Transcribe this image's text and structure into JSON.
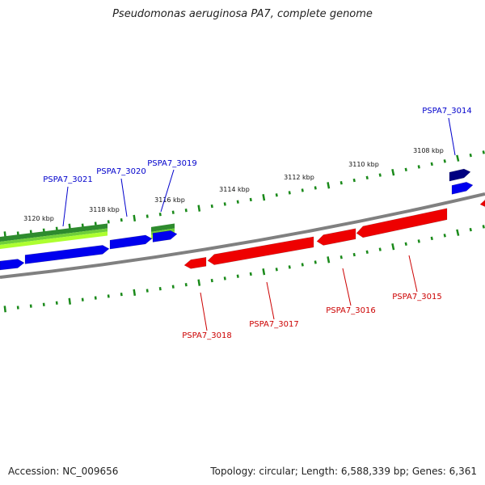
{
  "header": {
    "title": "Pseudomonas aeruginosa PA7, complete genome"
  },
  "footer": {
    "accession": "Accession: NC_009656",
    "summary": "Topology: circular; Length: 6,588,339 bp; Genes: 6,361"
  },
  "colors": {
    "backbone": "#808080",
    "plus_gene": "#0000ee",
    "plus_gene_dark": "#000080",
    "minus_gene": "#ee0000",
    "feature_green": "#2e8b2e",
    "feature_lightgreen": "#adff2f",
    "tick": "#1a8a1a",
    "plus_label": "#0000cc",
    "minus_label": "#cc0000"
  },
  "scale": {
    "ticks": [
      {
        "kbp": 3108,
        "label": "3108 kbp"
      },
      {
        "kbp": 3110,
        "label": "3110 kbp"
      },
      {
        "kbp": 3112,
        "label": "3112 kbp"
      },
      {
        "kbp": 3114,
        "label": "3114 kbp"
      },
      {
        "kbp": 3116,
        "label": "3116 kbp"
      },
      {
        "kbp": 3118,
        "label": "3118 kbp"
      },
      {
        "kbp": 3120,
        "label": "3120 kbp"
      }
    ]
  },
  "genes": {
    "plus": [
      {
        "name": "PSPA7_3014",
        "dark": true
      },
      {
        "name": "PSPA7_3019",
        "dark": false
      },
      {
        "name": "PSPA7_3020",
        "dark": false
      },
      {
        "name": "PSPA7_3021",
        "dark": false
      }
    ],
    "minus": [
      {
        "name": "PSPA7_3015"
      },
      {
        "name": "PSPA7_3016"
      },
      {
        "name": "PSPA7_3017"
      },
      {
        "name": "PSPA7_3018"
      }
    ]
  }
}
